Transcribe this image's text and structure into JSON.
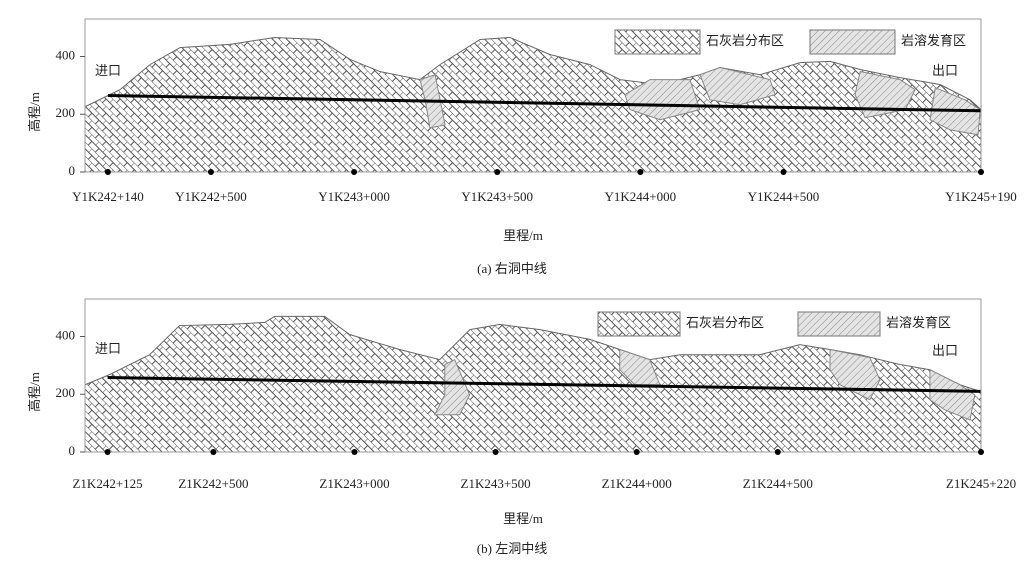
{
  "chart_data": [
    {
      "type": "profile",
      "caption": "(a) 右洞中线",
      "x_label": "里程/m",
      "y_label": "高程/m",
      "xlim": [
        242060,
        245190
      ],
      "ylim": [
        0,
        530
      ],
      "xticks": [
        {
          "value": 242140,
          "label": "Y1K242+140"
        },
        {
          "value": 242500,
          "label": "Y1K242+500"
        },
        {
          "value": 243000,
          "label": "Y1K243+000"
        },
        {
          "value": 243500,
          "label": "Y1K243+500"
        },
        {
          "value": 244000,
          "label": "Y1K244+000"
        },
        {
          "value": 244500,
          "label": "Y1K244+500"
        },
        {
          "value": 245190,
          "label": "Y1K245+190"
        }
      ],
      "yticks": [
        0,
        200,
        400
      ],
      "series": [
        {
          "name": "石灰岩分布区",
          "x": [
            242060,
            242182,
            242287,
            242392,
            242566,
            242723,
            242881,
            242986,
            243090,
            243230,
            243300,
            243440,
            243545,
            243684,
            243824,
            243929,
            244069,
            244208,
            244278,
            244418,
            244558,
            244663,
            244768,
            244907,
            245047,
            245152,
            245190
          ],
          "values": [
            226,
            285,
            372,
            431,
            442,
            466,
            459,
            390,
            348,
            320,
            372,
            459,
            466,
            407,
            372,
            320,
            303,
            337,
            362,
            337,
            379,
            383,
            355,
            327,
            303,
            250,
            216
          ]
        },
        {
          "name": "岩溶发育区",
          "zones": [
            {
              "x": [
                243230,
                243283,
                243318,
                243265,
                243248
              ],
              "values": [
                320,
                337,
                163,
                153,
                250
              ]
            },
            {
              "x": [
                243946,
                244034,
                244173,
                244208,
                244069,
                243964
              ],
              "values": [
                268,
                320,
                320,
                216,
                181,
                216
              ]
            },
            {
              "x": [
                244208,
                244278,
                244453,
                244471,
                244348,
                244243
              ],
              "values": [
                337,
                362,
                320,
                268,
                233,
                250
              ]
            },
            {
              "x": [
                244768,
                244907,
                244960,
                244925,
                244785,
                244750
              ],
              "values": [
                348,
                320,
                285,
                216,
                188,
                268
              ]
            },
            {
              "x": [
                245030,
                245134,
                245187,
                245180,
                245082,
                245012
              ],
              "values": [
                292,
                250,
                216,
                129,
                146,
                181
              ]
            }
          ]
        }
      ],
      "tunnel": {
        "x": [
          242140,
          245190
        ],
        "values": [
          265,
          212
        ]
      },
      "annotations": [
        "进口",
        "出口"
      ]
    },
    {
      "type": "profile",
      "caption": "(b) 左洞中线",
      "x_label": "里程/m",
      "y_label": "高程/m",
      "xlim": [
        242045,
        245220
      ],
      "ylim": [
        0,
        530
      ],
      "xticks": [
        {
          "value": 242125,
          "label": "Z1K242+125"
        },
        {
          "value": 242500,
          "label": "Z1K242+500"
        },
        {
          "value": 243000,
          "label": "Z1K243+000"
        },
        {
          "value": 243500,
          "label": "Z1K243+500"
        },
        {
          "value": 244000,
          "label": "Z1K244+000"
        },
        {
          "value": 244500,
          "label": "Z1K244+500"
        },
        {
          "value": 245220,
          "label": "Z1K245+220"
        }
      ],
      "yticks": [
        0,
        200,
        400
      ],
      "series": [
        {
          "name": "石灰岩分布区",
          "x": [
            242045,
            242132,
            242274,
            242380,
            242557,
            242682,
            242717,
            242894,
            242983,
            243160,
            243302,
            243409,
            243515,
            243657,
            243834,
            243940,
            244047,
            244153,
            244295,
            244436,
            244578,
            244685,
            244791,
            244933,
            245039,
            245145,
            245220
          ],
          "values": [
            233,
            268,
            337,
            438,
            442,
            449,
            470,
            470,
            407,
            355,
            320,
            424,
            442,
            424,
            390,
            355,
            320,
            337,
            337,
            337,
            372,
            355,
            337,
            303,
            285,
            233,
            209
          ]
        },
        {
          "name": "岩溶发育区",
          "zones": [
            {
              "x": [
                243320,
                243355,
                243408,
                243373,
                243284,
                243320
              ],
              "values": [
                303,
                320,
                198,
                129,
                129,
                198
              ]
            },
            {
              "x": [
                243940,
                244046,
                244082,
                243993,
                243940
              ],
              "values": [
                355,
                320,
                233,
                233,
                285
              ]
            },
            {
              "x": [
                244685,
                244826,
                244862,
                244826,
                244720,
                244685
              ],
              "values": [
                355,
                327,
                250,
                181,
                233,
                285
              ]
            },
            {
              "x": [
                245039,
                245145,
                245198,
                245181,
                245092,
                245039
              ],
              "values": [
                285,
                233,
                198,
                111,
                146,
                181
              ]
            }
          ]
        }
      ],
      "tunnel": {
        "x": [
          242125,
          245220
        ],
        "values": [
          258,
          210
        ]
      },
      "annotations": [
        "进口",
        "出口"
      ]
    }
  ]
}
